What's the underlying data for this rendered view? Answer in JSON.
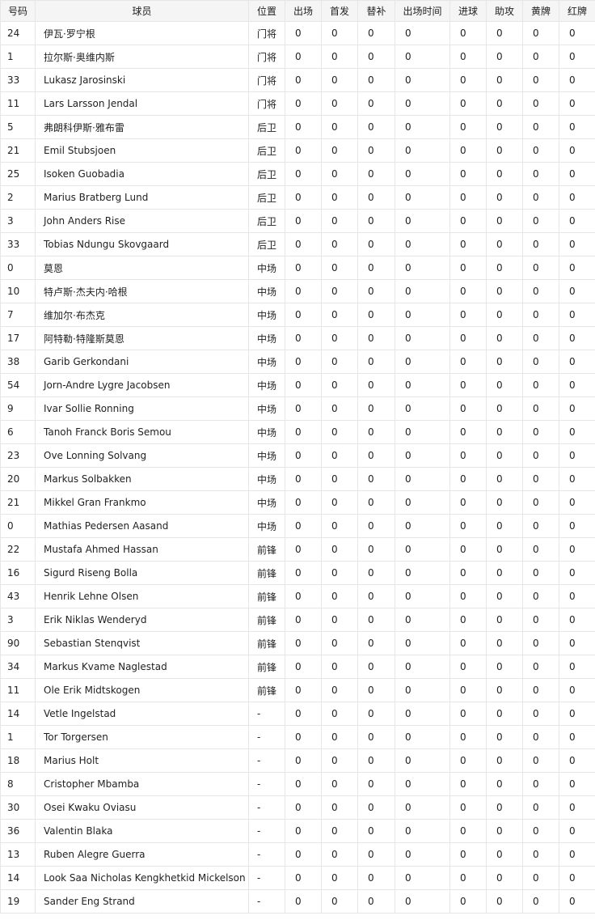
{
  "table": {
    "header": [
      "号码",
      "球员",
      "位置",
      "出场",
      "首发",
      "替补",
      "出场时间",
      "进球",
      "助攻",
      "黄牌",
      "红牌"
    ],
    "rows": [
      [
        "24",
        "伊瓦·罗宁根",
        "门将",
        "0",
        "0",
        "0",
        "0",
        "0",
        "0",
        "0",
        "0"
      ],
      [
        "1",
        "拉尔斯·奥维内斯",
        "门将",
        "0",
        "0",
        "0",
        "0",
        "0",
        "0",
        "0",
        "0"
      ],
      [
        "33",
        "Lukasz Jarosinski",
        "门将",
        "0",
        "0",
        "0",
        "0",
        "0",
        "0",
        "0",
        "0"
      ],
      [
        "11",
        "Lars Larsson Jendal",
        "门将",
        "0",
        "0",
        "0",
        "0",
        "0",
        "0",
        "0",
        "0"
      ],
      [
        "5",
        "弗朗科伊斯·雅布雷",
        "后卫",
        "0",
        "0",
        "0",
        "0",
        "0",
        "0",
        "0",
        "0"
      ],
      [
        "21",
        "Emil Stubsjoen",
        "后卫",
        "0",
        "0",
        "0",
        "0",
        "0",
        "0",
        "0",
        "0"
      ],
      [
        "25",
        "Isoken Guobadia",
        "后卫",
        "0",
        "0",
        "0",
        "0",
        "0",
        "0",
        "0",
        "0"
      ],
      [
        "2",
        "Marius Bratberg Lund",
        "后卫",
        "0",
        "0",
        "0",
        "0",
        "0",
        "0",
        "0",
        "0"
      ],
      [
        "3",
        "John Anders Rise",
        "后卫",
        "0",
        "0",
        "0",
        "0",
        "0",
        "0",
        "0",
        "0"
      ],
      [
        "33",
        "Tobias Ndungu Skovgaard",
        "后卫",
        "0",
        "0",
        "0",
        "0",
        "0",
        "0",
        "0",
        "0"
      ],
      [
        "0",
        "莫恩",
        "中场",
        "0",
        "0",
        "0",
        "0",
        "0",
        "0",
        "0",
        "0"
      ],
      [
        "10",
        "特卢斯·杰夫内·哈根",
        "中场",
        "0",
        "0",
        "0",
        "0",
        "0",
        "0",
        "0",
        "0"
      ],
      [
        "7",
        "维加尔·布杰克",
        "中场",
        "0",
        "0",
        "0",
        "0",
        "0",
        "0",
        "0",
        "0"
      ],
      [
        "17",
        "阿特勒·特隆斯莫恩",
        "中场",
        "0",
        "0",
        "0",
        "0",
        "0",
        "0",
        "0",
        "0"
      ],
      [
        "38",
        "Garib Gerkondani",
        "中场",
        "0",
        "0",
        "0",
        "0",
        "0",
        "0",
        "0",
        "0"
      ],
      [
        "54",
        "Jorn-Andre Lygre Jacobsen",
        "中场",
        "0",
        "0",
        "0",
        "0",
        "0",
        "0",
        "0",
        "0"
      ],
      [
        "9",
        "Ivar Sollie Ronning",
        "中场",
        "0",
        "0",
        "0",
        "0",
        "0",
        "0",
        "0",
        "0"
      ],
      [
        "6",
        "Tanoh Franck Boris Semou",
        "中场",
        "0",
        "0",
        "0",
        "0",
        "0",
        "0",
        "0",
        "0"
      ],
      [
        "23",
        "Ove Lonning Solvang",
        "中场",
        "0",
        "0",
        "0",
        "0",
        "0",
        "0",
        "0",
        "0"
      ],
      [
        "20",
        "Markus Solbakken",
        "中场",
        "0",
        "0",
        "0",
        "0",
        "0",
        "0",
        "0",
        "0"
      ],
      [
        "21",
        "Mikkel Gran Frankmo",
        "中场",
        "0",
        "0",
        "0",
        "0",
        "0",
        "0",
        "0",
        "0"
      ],
      [
        "0",
        "Mathias Pedersen Aasand",
        "中场",
        "0",
        "0",
        "0",
        "0",
        "0",
        "0",
        "0",
        "0"
      ],
      [
        "22",
        "Mustafa Ahmed Hassan",
        "前锋",
        "0",
        "0",
        "0",
        "0",
        "0",
        "0",
        "0",
        "0"
      ],
      [
        "16",
        "Sigurd Riseng Bolla",
        "前锋",
        "0",
        "0",
        "0",
        "0",
        "0",
        "0",
        "0",
        "0"
      ],
      [
        "43",
        "Henrik Lehne Olsen",
        "前锋",
        "0",
        "0",
        "0",
        "0",
        "0",
        "0",
        "0",
        "0"
      ],
      [
        "3",
        "Erik Niklas Wenderyd",
        "前锋",
        "0",
        "0",
        "0",
        "0",
        "0",
        "0",
        "0",
        "0"
      ],
      [
        "90",
        "Sebastian Stenqvist",
        "前锋",
        "0",
        "0",
        "0",
        "0",
        "0",
        "0",
        "0",
        "0"
      ],
      [
        "34",
        "Markus Kvame Naglestad",
        "前锋",
        "0",
        "0",
        "0",
        "0",
        "0",
        "0",
        "0",
        "0"
      ],
      [
        "11",
        "Ole Erik Midtskogen",
        "前锋",
        "0",
        "0",
        "0",
        "0",
        "0",
        "0",
        "0",
        "0"
      ],
      [
        "14",
        "Vetle Ingelstad",
        "-",
        "0",
        "0",
        "0",
        "0",
        "0",
        "0",
        "0",
        "0"
      ],
      [
        "1",
        "Tor Torgersen",
        "-",
        "0",
        "0",
        "0",
        "0",
        "0",
        "0",
        "0",
        "0"
      ],
      [
        "18",
        "Marius Holt",
        "-",
        "0",
        "0",
        "0",
        "0",
        "0",
        "0",
        "0",
        "0"
      ],
      [
        "8",
        "Cristopher Mbamba",
        "-",
        "0",
        "0",
        "0",
        "0",
        "0",
        "0",
        "0",
        "0"
      ],
      [
        "30",
        "Osei Kwaku Oviasu",
        "-",
        "0",
        "0",
        "0",
        "0",
        "0",
        "0",
        "0",
        "0"
      ],
      [
        "36",
        "Valentin Blaka",
        "-",
        "0",
        "0",
        "0",
        "0",
        "0",
        "0",
        "0",
        "0"
      ],
      [
        "13",
        "Ruben Alegre Guerra",
        "-",
        "0",
        "0",
        "0",
        "0",
        "0",
        "0",
        "0",
        "0"
      ],
      [
        "14",
        "Look Saa Nicholas Kengkhetkid Mickelson",
        "-",
        "0",
        "0",
        "0",
        "0",
        "0",
        "0",
        "0",
        "0"
      ],
      [
        "19",
        "Sander Eng Strand",
        "-",
        "0",
        "0",
        "0",
        "0",
        "0",
        "0",
        "0",
        "0"
      ]
    ]
  }
}
